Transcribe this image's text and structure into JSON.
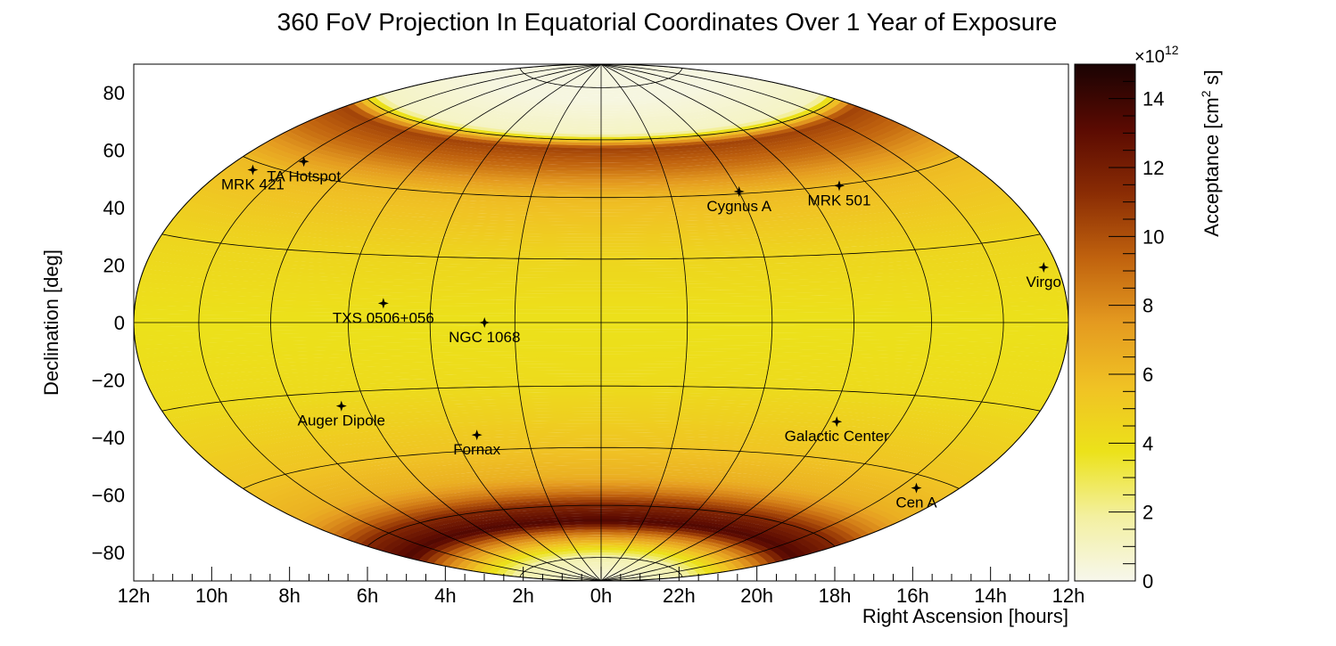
{
  "chart_data": {
    "type": "heatmap",
    "projection": "hammer-aitoff, equatorial coordinates",
    "title": "360 FoV Projection In Equatorial Coordinates Over 1 Year of Exposure",
    "xlabel": "Right Ascension [hours]",
    "ylabel": "Declination [deg]",
    "x_ticks": [
      "12h",
      "10h",
      "8h",
      "6h",
      "4h",
      "2h",
      "0h",
      "22h",
      "20h",
      "18h",
      "16h",
      "14h",
      "12h"
    ],
    "y_ticks": [
      "80",
      "60",
      "40",
      "20",
      "0",
      "−20",
      "−40",
      "−60",
      "−80"
    ],
    "y_tick_values": [
      80,
      60,
      40,
      20,
      0,
      -20,
      -40,
      -60,
      -80
    ],
    "ylim": [
      -90,
      90
    ],
    "colorbar": {
      "label": "Acceptance [cm",
      "label_sup": "2",
      "label_tail": " s]",
      "exponent_base": "×10",
      "exponent": "12",
      "ticks": [
        "0",
        "2",
        "4",
        "6",
        "8",
        "10",
        "12",
        "14"
      ],
      "tick_values": [
        0,
        2,
        4,
        6,
        8,
        10,
        12,
        14
      ],
      "range": [
        0,
        15
      ],
      "colormap": [
        "#f7f7ec",
        "#f3f0a0",
        "#ece21a",
        "#f0c224",
        "#e49a20",
        "#c0620e",
        "#8a2c04",
        "#5a0a02",
        "#1a0303"
      ]
    },
    "acceptance_profile": {
      "description_points_dec": [
        90,
        75,
        62,
        57,
        50,
        40,
        20,
        0,
        -20,
        -40,
        -50,
        -55,
        -60,
        -66,
        -70,
        -75,
        -80,
        -90
      ],
      "values": [
        0.3,
        0.3,
        1.0,
        10.5,
        9.0,
        6.0,
        4.5,
        3.8,
        4.2,
        5.5,
        6.5,
        8.5,
        11.5,
        13.5,
        9.0,
        5.0,
        1.5,
        0.3
      ]
    },
    "sources": [
      {
        "name": "MRK 421",
        "ra_h": 11.07,
        "dec": 38.2
      },
      {
        "name": "TA Hotspot",
        "ra_h": 9.8,
        "dec": 43.2
      },
      {
        "name": "Cygnus A",
        "ra_h": 19.99,
        "dec": 40.7
      },
      {
        "name": "MRK 501",
        "ra_h": 16.9,
        "dec": 39.8
      },
      {
        "name": "TXS 0506+056",
        "ra_h": 5.15,
        "dec": 5.7
      },
      {
        "name": "NGC 1068",
        "ra_h": 2.71,
        "dec": -0.01
      },
      {
        "name": "Virgo",
        "ra_h": 12.45,
        "dec": 12.7
      },
      {
        "name": "Auger Dipole",
        "ra_h": 6.67,
        "dec": -24.0
      },
      {
        "name": "Fornax",
        "ra_h": 3.38,
        "dec": -35.0
      },
      {
        "name": "Galactic Center",
        "ra_h": 17.76,
        "dec": -29.0
      },
      {
        "name": "Cen A",
        "ra_h": 13.42,
        "dec": -43.0
      }
    ]
  }
}
